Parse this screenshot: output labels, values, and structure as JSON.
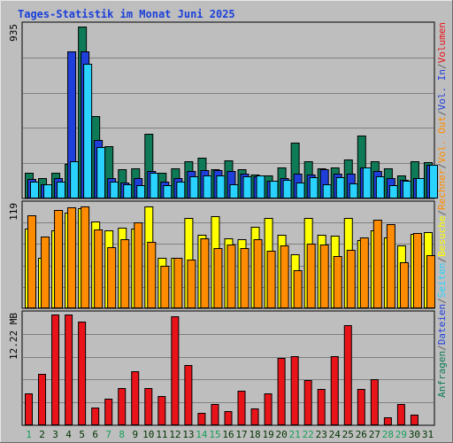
{
  "chart_data": {
    "type": "bar",
    "title": "Tages-Statistik im Monat Juni 2025",
    "days": [
      "1",
      "2",
      "3",
      "4",
      "5",
      "6",
      "7",
      "8",
      "9",
      "10",
      "11",
      "12",
      "13",
      "14",
      "15",
      "16",
      "17",
      "18",
      "19",
      "20",
      "21",
      "22",
      "23",
      "24",
      "25",
      "26",
      "27",
      "28",
      "29",
      "30",
      "31"
    ],
    "weekend_days": [
      "1",
      "7",
      "8",
      "14",
      "15",
      "21",
      "22",
      "28",
      "29"
    ],
    "panels": [
      {
        "id": "requests",
        "scale_label": "935",
        "ymax": 935,
        "series": [
          {
            "name": "Anfragen",
            "color": "#0f7a57",
            "values": [
              140,
              110,
              140,
              185,
              930,
              445,
              285,
              160,
              165,
              350,
              140,
              165,
              200,
              220,
              160,
              205,
              160,
              130,
              125,
              170,
              300,
              200,
              165,
              170,
              210,
              340,
              200,
              165,
              125,
              200,
              195
            ]
          },
          {
            "name": "Dateien",
            "color": "#1f3fdb",
            "values": [
              105,
              75,
              110,
              795,
              795,
              315,
              110,
              85,
              110,
              150,
              90,
              110,
              150,
              155,
              155,
              150,
              135,
              120,
              95,
              110,
              135,
              130,
              160,
              135,
              135,
              170,
              150,
              110,
              100,
              110,
              180
            ]
          },
          {
            "name": "Seiten",
            "color": "#29d2ff",
            "values": [
              90,
              75,
              90,
              200,
              730,
              280,
              90,
              75,
              70,
              140,
              70,
              90,
              120,
              125,
              125,
              75,
              120,
              125,
              95,
              100,
              85,
              115,
              75,
              115,
              80,
              170,
              120,
              70,
              95,
              110,
              180
            ]
          }
        ]
      },
      {
        "id": "visits",
        "scale_label": "119",
        "ymax": 119,
        "series": [
          {
            "name": "Besuche",
            "color": "#ffff00",
            "values": [
              92,
              58,
              89,
              110,
              115,
              100,
              89,
              93,
              92,
              117,
              58,
              58,
              104,
              84,
              106,
              80,
              79,
              94,
              104,
              84,
              62,
              104,
              84,
              83,
              104,
              78,
              90,
              81,
              72,
              85,
              87
            ]
          },
          {
            "name": "Rechner",
            "color": "#ff8c00",
            "values": [
              107,
              82,
              113,
              116,
              117,
              91,
              70,
              79,
              99,
              76,
              49,
              58,
              56,
              80,
              69,
              73,
              69,
              79,
              66,
              72,
              44,
              74,
              73,
              60,
              67,
              81,
              102,
              97,
              53,
              86,
              61
            ]
          }
        ]
      },
      {
        "id": "volume",
        "scale_label": "12.22 MB",
        "ymax": 12.22,
        "series": [
          {
            "name": "Volumen",
            "color": "#e8141a",
            "values": [
              3.5,
              5.7,
              12.2,
              12.2,
              11.4,
              2.0,
              2.9,
              4.1,
              6.0,
              4.1,
              3.2,
              12.0,
              6.6,
              1.4,
              2.3,
              1.6,
              3.8,
              1.9,
              3.5,
              7.4,
              7.6,
              5.0,
              4.0,
              7.6,
              11.0,
              4.0,
              5.1,
              0.9,
              2.3,
              1.2,
              0.0
            ]
          }
        ]
      }
    ],
    "right_labels": [
      {
        "text": "Anfragen",
        "color": "#0f7a57"
      },
      {
        "text": "/",
        "color": "#606060"
      },
      {
        "text": "Dateien",
        "color": "#1f3fdb"
      },
      {
        "text": "/",
        "color": "#606060"
      },
      {
        "text": "Seiten",
        "color": "#29d2ff"
      },
      {
        "text": "/",
        "color": "#606060"
      },
      {
        "text": "Besuche",
        "color": "#ffff00"
      },
      {
        "text": "/",
        "color": "#606060"
      },
      {
        "text": "Rechner",
        "color": "#ff8c00"
      },
      {
        "text": "/",
        "color": "#606060"
      },
      {
        "text": "Vol. Out",
        "color": "#ff8c00"
      },
      {
        "text": "/",
        "color": "#606060"
      },
      {
        "text": "Vol. In",
        "color": "#1f3fdb"
      },
      {
        "text": "/",
        "color": "#606060"
      },
      {
        "text": "Volumen",
        "color": "#e8141a"
      }
    ],
    "colors": {
      "background": "#bebebe",
      "title": "#1a3fd9",
      "weekday_label": "#003300",
      "weekend_label": "#18a05a",
      "gridline": "#808080"
    },
    "grid": true
  }
}
